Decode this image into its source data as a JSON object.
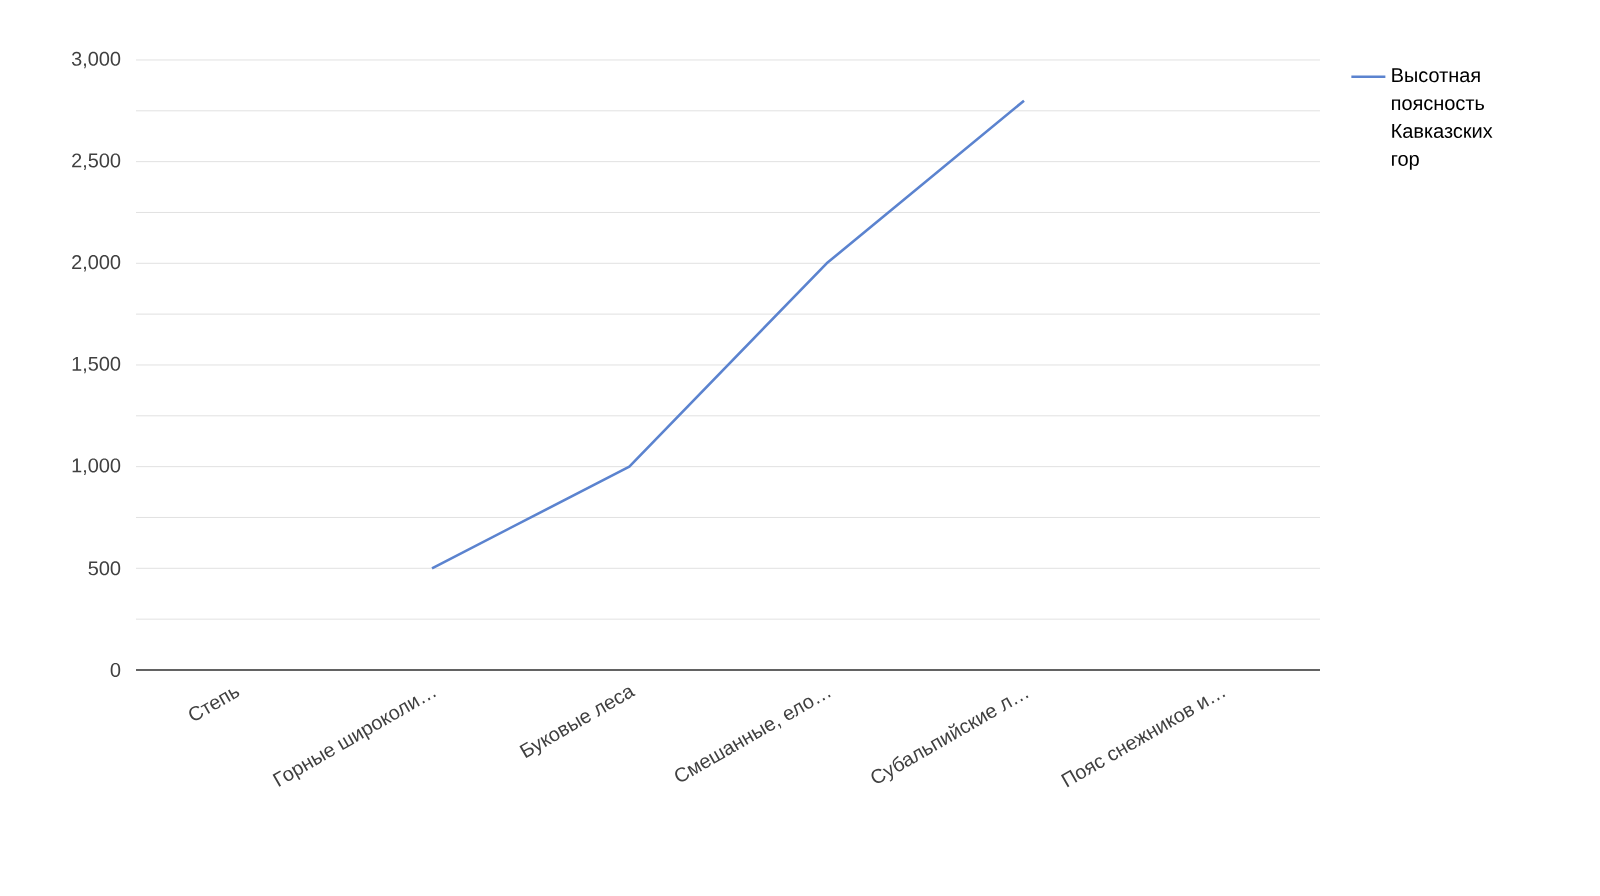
{
  "chart_data": {
    "type": "line",
    "categories": [
      "Степь",
      "Горные широколи…",
      "Буковые леса",
      "Смешанные, ело…",
      "Субальпийские л…",
      "Пояс снежников и…"
    ],
    "series": [
      {
        "name": "Высотная поясность Кавказских гор",
        "color": "#5b83cf",
        "values": [
          null,
          500,
          1000,
          2000,
          2800,
          null
        ]
      }
    ],
    "ylim": [
      0,
      3000
    ],
    "yticks": [
      0,
      {
        "value": 250,
        "label": null
      },
      500,
      {
        "value": 750,
        "label": null
      },
      {
        "value": 1000,
        "label": "1,000"
      },
      {
        "value": 1250,
        "label": null
      },
      {
        "value": 1500,
        "label": "1,500"
      },
      {
        "value": 1750,
        "label": null
      },
      {
        "value": 2000,
        "label": "2,000"
      },
      {
        "value": 2250,
        "label": null
      },
      {
        "value": 2500,
        "label": "2,500"
      },
      {
        "value": 2750,
        "label": null
      },
      {
        "value": 3000,
        "label": "3,000"
      }
    ],
    "grid": "y",
    "legend": "top right",
    "line_style": "solid"
  }
}
